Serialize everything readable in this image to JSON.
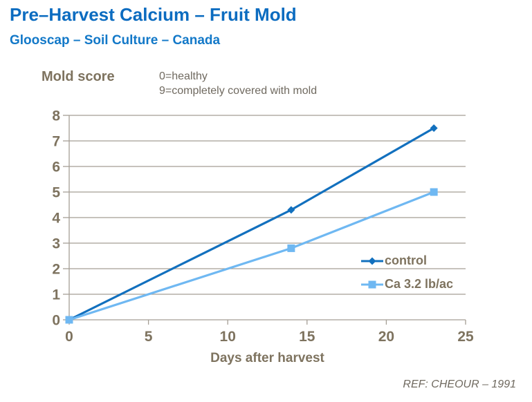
{
  "header": {
    "title": "Pre–Harvest Calcium – Fruit Mold",
    "subtitle": "Glooscap – Soil Culture – Canada"
  },
  "annotation": {
    "line1": "0=healthy",
    "line2": "9=completely covered with mold"
  },
  "footer": {
    "reference": "REF: CHEOUR – 1991"
  },
  "colors": {
    "title_blue": "#0C6CC0",
    "subtitle_blue": "#1278C8",
    "axis_text_brown": "#7E735F",
    "annotation_gray": "#6F695F",
    "gridline_gray": "#A59E95",
    "control_blue": "#1270BE",
    "calcium_light_blue": "#6FB8F2"
  },
  "chart_data": {
    "type": "line",
    "ylabel_title": "Mold score",
    "xlabel": "Days after harvest",
    "xlim": [
      0,
      25
    ],
    "ylim": [
      0,
      8
    ],
    "x_ticks": [
      0,
      5,
      10,
      15,
      20,
      25
    ],
    "y_ticks": [
      0,
      1,
      2,
      3,
      4,
      5,
      6,
      7,
      8
    ],
    "grid": "horizontal-only",
    "legend_position": "inside-right",
    "series": [
      {
        "name": "control",
        "color": "#1270BE",
        "marker": "diamond",
        "x": [
          0,
          14,
          23
        ],
        "y": [
          0,
          4.3,
          7.5
        ]
      },
      {
        "name": "Ca 3.2 lb/ac",
        "color": "#6FB8F2",
        "marker": "square",
        "x": [
          0,
          14,
          23
        ],
        "y": [
          0,
          2.8,
          5.0
        ]
      }
    ]
  }
}
